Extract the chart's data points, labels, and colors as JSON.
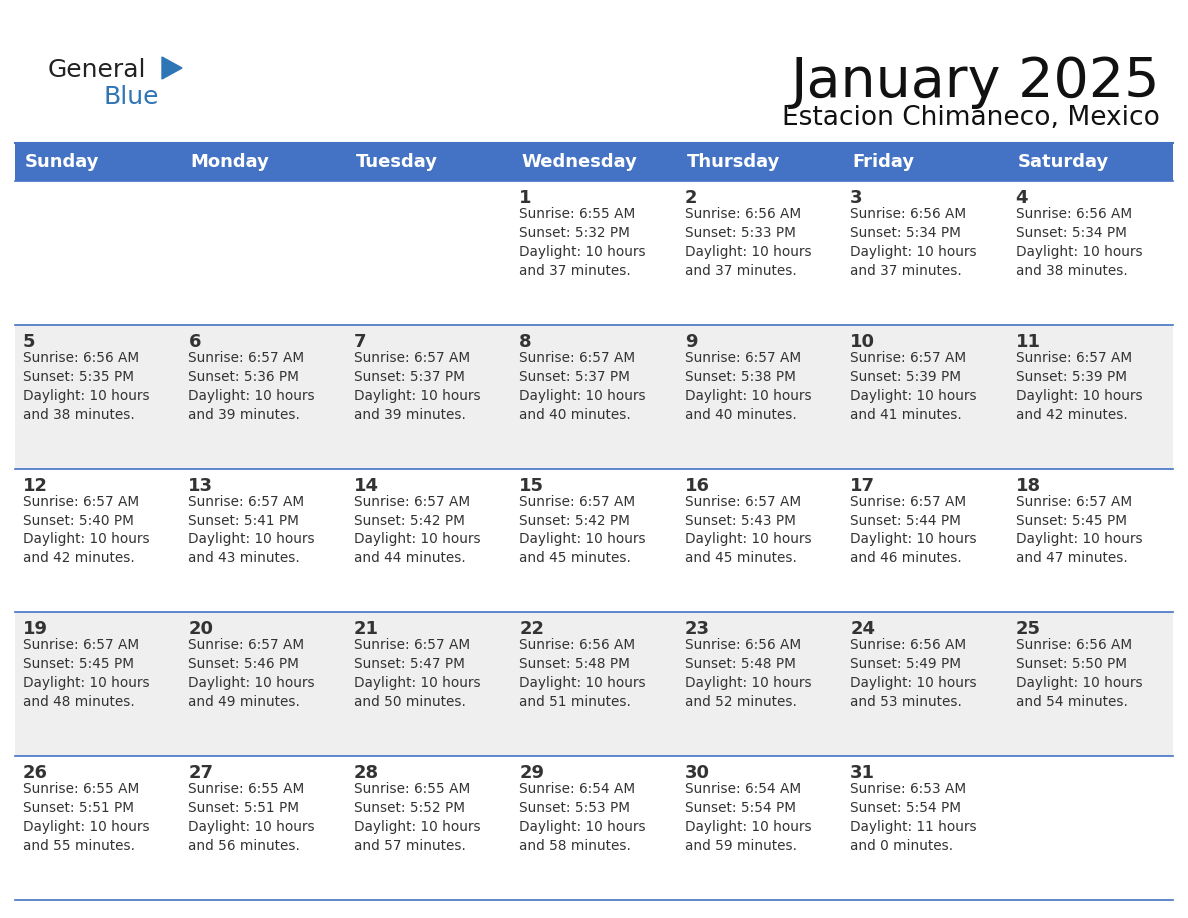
{
  "title": "January 2025",
  "subtitle": "Estacion Chimaneco, Mexico",
  "header_color": "#4472C4",
  "header_text_color": "#FFFFFF",
  "weekdays": [
    "Sunday",
    "Monday",
    "Tuesday",
    "Wednesday",
    "Thursday",
    "Friday",
    "Saturday"
  ],
  "bg_color": "#FFFFFF",
  "cell_bg_even": "#EFEFEF",
  "cell_bg_odd": "#FFFFFF",
  "text_color": "#333333",
  "border_color": "#4472C4",
  "calendar": [
    [
      {
        "day": "",
        "info": ""
      },
      {
        "day": "",
        "info": ""
      },
      {
        "day": "",
        "info": ""
      },
      {
        "day": "1",
        "info": "Sunrise: 6:55 AM\nSunset: 5:32 PM\nDaylight: 10 hours\nand 37 minutes."
      },
      {
        "day": "2",
        "info": "Sunrise: 6:56 AM\nSunset: 5:33 PM\nDaylight: 10 hours\nand 37 minutes."
      },
      {
        "day": "3",
        "info": "Sunrise: 6:56 AM\nSunset: 5:34 PM\nDaylight: 10 hours\nand 37 minutes."
      },
      {
        "day": "4",
        "info": "Sunrise: 6:56 AM\nSunset: 5:34 PM\nDaylight: 10 hours\nand 38 minutes."
      }
    ],
    [
      {
        "day": "5",
        "info": "Sunrise: 6:56 AM\nSunset: 5:35 PM\nDaylight: 10 hours\nand 38 minutes."
      },
      {
        "day": "6",
        "info": "Sunrise: 6:57 AM\nSunset: 5:36 PM\nDaylight: 10 hours\nand 39 minutes."
      },
      {
        "day": "7",
        "info": "Sunrise: 6:57 AM\nSunset: 5:37 PM\nDaylight: 10 hours\nand 39 minutes."
      },
      {
        "day": "8",
        "info": "Sunrise: 6:57 AM\nSunset: 5:37 PM\nDaylight: 10 hours\nand 40 minutes."
      },
      {
        "day": "9",
        "info": "Sunrise: 6:57 AM\nSunset: 5:38 PM\nDaylight: 10 hours\nand 40 minutes."
      },
      {
        "day": "10",
        "info": "Sunrise: 6:57 AM\nSunset: 5:39 PM\nDaylight: 10 hours\nand 41 minutes."
      },
      {
        "day": "11",
        "info": "Sunrise: 6:57 AM\nSunset: 5:39 PM\nDaylight: 10 hours\nand 42 minutes."
      }
    ],
    [
      {
        "day": "12",
        "info": "Sunrise: 6:57 AM\nSunset: 5:40 PM\nDaylight: 10 hours\nand 42 minutes."
      },
      {
        "day": "13",
        "info": "Sunrise: 6:57 AM\nSunset: 5:41 PM\nDaylight: 10 hours\nand 43 minutes."
      },
      {
        "day": "14",
        "info": "Sunrise: 6:57 AM\nSunset: 5:42 PM\nDaylight: 10 hours\nand 44 minutes."
      },
      {
        "day": "15",
        "info": "Sunrise: 6:57 AM\nSunset: 5:42 PM\nDaylight: 10 hours\nand 45 minutes."
      },
      {
        "day": "16",
        "info": "Sunrise: 6:57 AM\nSunset: 5:43 PM\nDaylight: 10 hours\nand 45 minutes."
      },
      {
        "day": "17",
        "info": "Sunrise: 6:57 AM\nSunset: 5:44 PM\nDaylight: 10 hours\nand 46 minutes."
      },
      {
        "day": "18",
        "info": "Sunrise: 6:57 AM\nSunset: 5:45 PM\nDaylight: 10 hours\nand 47 minutes."
      }
    ],
    [
      {
        "day": "19",
        "info": "Sunrise: 6:57 AM\nSunset: 5:45 PM\nDaylight: 10 hours\nand 48 minutes."
      },
      {
        "day": "20",
        "info": "Sunrise: 6:57 AM\nSunset: 5:46 PM\nDaylight: 10 hours\nand 49 minutes."
      },
      {
        "day": "21",
        "info": "Sunrise: 6:57 AM\nSunset: 5:47 PM\nDaylight: 10 hours\nand 50 minutes."
      },
      {
        "day": "22",
        "info": "Sunrise: 6:56 AM\nSunset: 5:48 PM\nDaylight: 10 hours\nand 51 minutes."
      },
      {
        "day": "23",
        "info": "Sunrise: 6:56 AM\nSunset: 5:48 PM\nDaylight: 10 hours\nand 52 minutes."
      },
      {
        "day": "24",
        "info": "Sunrise: 6:56 AM\nSunset: 5:49 PM\nDaylight: 10 hours\nand 53 minutes."
      },
      {
        "day": "25",
        "info": "Sunrise: 6:56 AM\nSunset: 5:50 PM\nDaylight: 10 hours\nand 54 minutes."
      }
    ],
    [
      {
        "day": "26",
        "info": "Sunrise: 6:55 AM\nSunset: 5:51 PM\nDaylight: 10 hours\nand 55 minutes."
      },
      {
        "day": "27",
        "info": "Sunrise: 6:55 AM\nSunset: 5:51 PM\nDaylight: 10 hours\nand 56 minutes."
      },
      {
        "day": "28",
        "info": "Sunrise: 6:55 AM\nSunset: 5:52 PM\nDaylight: 10 hours\nand 57 minutes."
      },
      {
        "day": "29",
        "info": "Sunrise: 6:54 AM\nSunset: 5:53 PM\nDaylight: 10 hours\nand 58 minutes."
      },
      {
        "day": "30",
        "info": "Sunrise: 6:54 AM\nSunset: 5:54 PM\nDaylight: 10 hours\nand 59 minutes."
      },
      {
        "day": "31",
        "info": "Sunrise: 6:53 AM\nSunset: 5:54 PM\nDaylight: 11 hours\nand 0 minutes."
      },
      {
        "day": "",
        "info": ""
      }
    ]
  ],
  "logo_text1": "General",
  "logo_text2": "Blue",
  "logo_color1": "#222222",
  "logo_color2": "#2E75B6",
  "triangle_color": "#2E75B6",
  "title_fontsize": 40,
  "subtitle_fontsize": 19,
  "header_fontsize": 13,
  "day_fontsize": 13,
  "info_fontsize": 9.8,
  "logo_fontsize": 18
}
